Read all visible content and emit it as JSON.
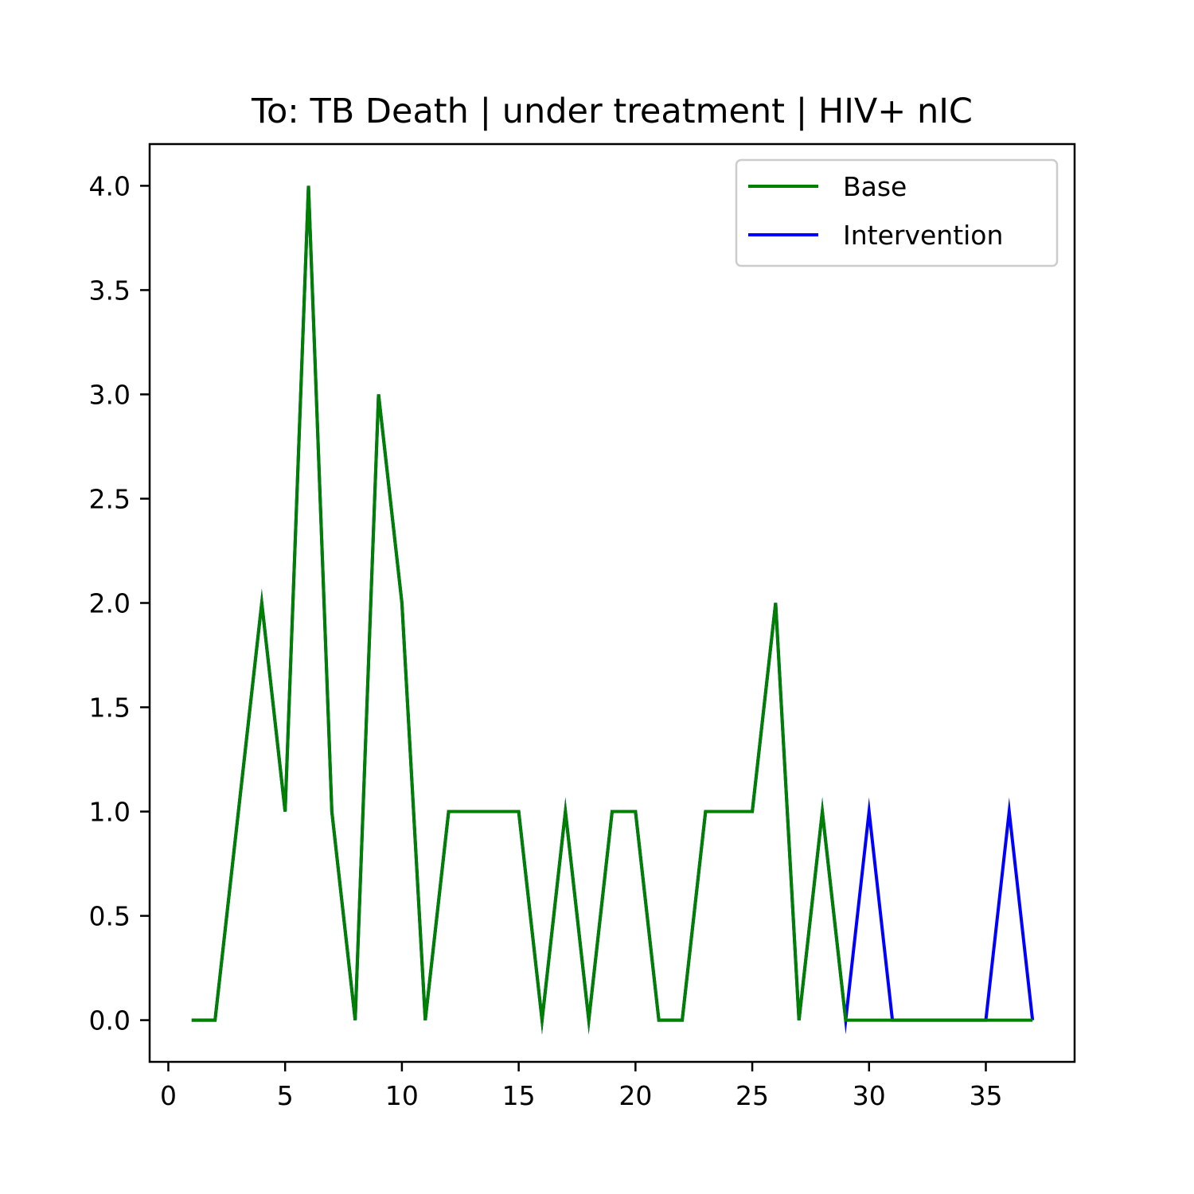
{
  "chart_data": {
    "type": "line",
    "title": "To: TB Death | under treatment | HIV+ nIC",
    "xlabel": "",
    "ylabel": "",
    "xlim": [
      -0.8,
      38.8
    ],
    "ylim": [
      -0.2,
      4.2
    ],
    "x_ticks": [
      0,
      5,
      10,
      15,
      20,
      25,
      30,
      35
    ],
    "y_ticks": [
      0.0,
      0.5,
      1.0,
      1.5,
      2.0,
      2.5,
      3.0,
      3.5,
      4.0
    ],
    "y_tick_labels": [
      "0.0",
      "0.5",
      "1.0",
      "1.5",
      "2.0",
      "2.5",
      "3.0",
      "3.5",
      "4.0"
    ],
    "x_tick_labels": [
      "0",
      "5",
      "10",
      "15",
      "20",
      "25",
      "30",
      "35"
    ],
    "grid": false,
    "legend_position": "top-right",
    "x": [
      1,
      2,
      3,
      4,
      5,
      6,
      7,
      8,
      9,
      10,
      11,
      12,
      13,
      14,
      15,
      16,
      17,
      18,
      19,
      20,
      21,
      22,
      23,
      24,
      25,
      26,
      27,
      28,
      29,
      30,
      31,
      32,
      33,
      34,
      35,
      36,
      37
    ],
    "series": [
      {
        "name": "Intervention",
        "color": "#0000ff",
        "values": [
          0,
          0,
          1,
          2,
          1,
          4,
          1,
          0,
          3,
          2,
          0,
          1,
          1,
          1,
          1,
          0,
          1,
          0,
          1,
          1,
          0,
          0,
          1,
          1,
          1,
          2,
          0,
          1,
          0,
          1,
          0,
          0,
          0,
          0,
          0,
          1,
          0
        ]
      },
      {
        "name": "Base",
        "color": "#008000",
        "values": [
          0,
          0,
          1,
          2,
          1,
          4,
          1,
          0,
          3,
          2,
          0,
          1,
          1,
          1,
          1,
          0,
          1,
          0,
          1,
          1,
          0,
          0,
          1,
          1,
          1,
          2,
          0,
          1,
          0,
          0,
          0,
          0,
          0,
          0,
          0,
          0,
          0
        ]
      }
    ],
    "legend_order": [
      "Base",
      "Intervention"
    ]
  }
}
